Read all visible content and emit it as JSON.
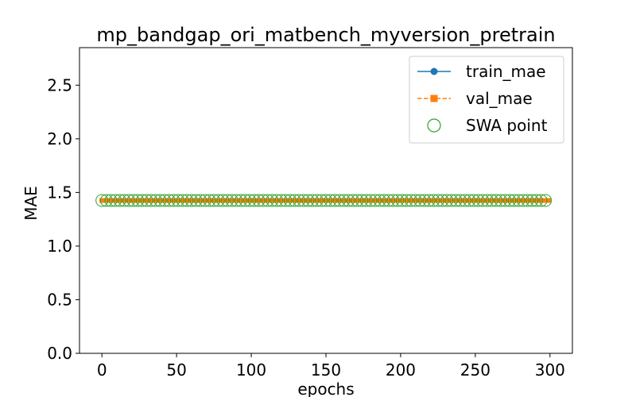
{
  "chart_data": {
    "type": "line",
    "title": "mp_bandgap_ori_matbench_myversion_pretrain",
    "xlabel": "epochs",
    "ylabel": "MAE",
    "xlim": [
      -15,
      315
    ],
    "ylim": [
      0,
      2.85
    ],
    "xticks": [
      0,
      50,
      100,
      150,
      200,
      250,
      300
    ],
    "yticks": [
      0.0,
      0.5,
      1.0,
      1.5,
      2.0,
      2.5
    ],
    "xtick_labels": [
      "0",
      "50",
      "100",
      "150",
      "200",
      "250",
      "300"
    ],
    "ytick_labels": [
      "0.0",
      "0.5",
      "1.0",
      "1.5",
      "2.0",
      "2.5"
    ],
    "grid": false,
    "legend_position": "top-right",
    "epochs": {
      "start": 0,
      "end": 299
    },
    "series": [
      {
        "name": "train_mae",
        "color": "#1f77b4",
        "marker": "circle",
        "linestyle": "solid",
        "value": 1.425
      },
      {
        "name": "val_mae",
        "color": "#ff7f0e",
        "marker": "square",
        "linestyle": "dashed",
        "value": 1.425
      },
      {
        "name": "SWA point",
        "color": "#2ca02c",
        "marker": "open-circle",
        "linestyle": "none",
        "value": 1.425,
        "step": 3
      }
    ]
  }
}
